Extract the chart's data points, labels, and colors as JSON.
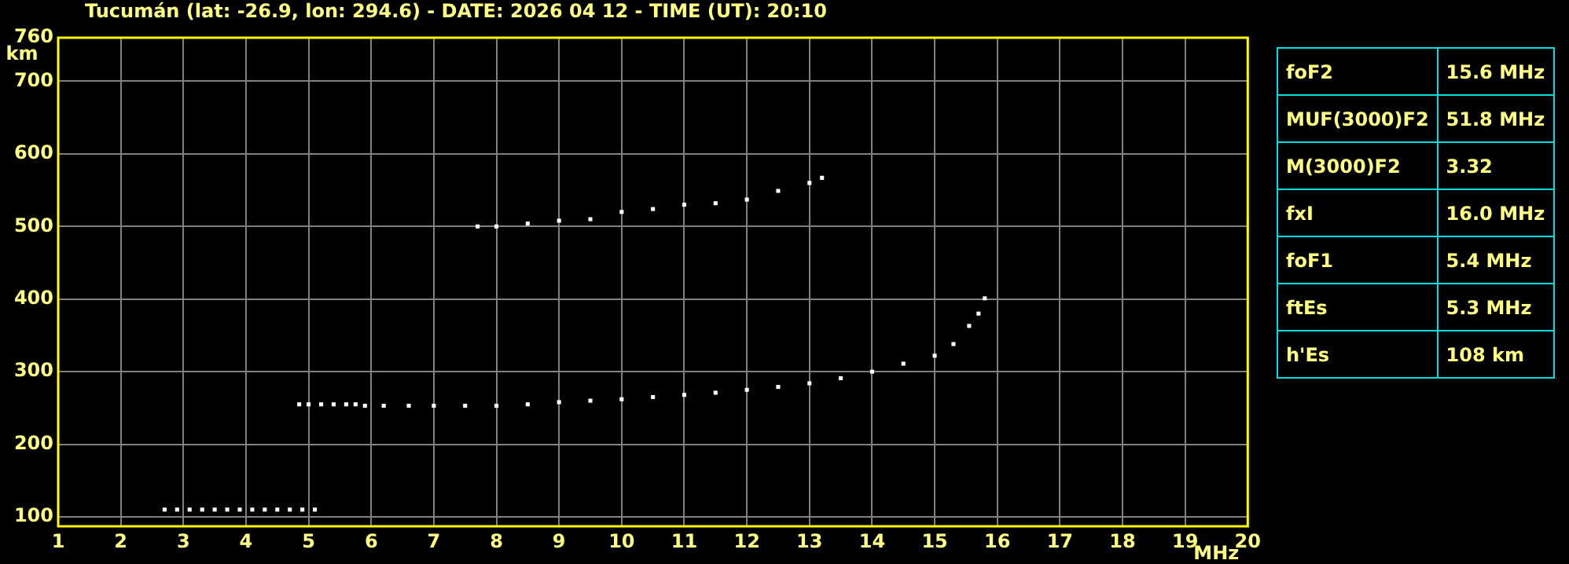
{
  "chart_data": [
    {
      "type": "scatter",
      "title": "Tucumán (lat: -26.9, lon: 294.6) - DATE: 2026 04 12 - TIME (UT): 20:10",
      "xlabel": "MHz",
      "ylabel": "km",
      "series": [
        {
          "color": "#ffffff",
          "x": [
            2.7,
            2.9,
            3.1,
            3.3,
            3.5,
            3.7,
            3.9,
            4.1,
            4.3,
            4.5,
            4.7,
            4.9,
            5.1
          ],
          "values": [
            110,
            110,
            110,
            110,
            110,
            110,
            110,
            110,
            110,
            110,
            110,
            110,
            110
          ]
        },
        {
          "color": "#ffffff",
          "x": [
            4.85,
            5.0,
            5.2,
            5.4,
            5.6,
            5.75,
            5.9,
            6.2,
            6.6,
            7.0,
            7.5,
            8.0,
            8.5,
            9.0,
            9.5,
            10.0,
            10.5,
            11.0,
            11.5,
            12.0,
            12.5,
            13.0,
            13.5,
            14.0,
            14.5,
            15.0,
            15.3,
            15.55,
            15.7,
            15.8
          ],
          "values": [
            255,
            255,
            255,
            255,
            255,
            255,
            253,
            253,
            253,
            253,
            253,
            253,
            255,
            258,
            260,
            262,
            265,
            268,
            271,
            275,
            279,
            284,
            291,
            300,
            311,
            322,
            338,
            363,
            380,
            401
          ]
        },
        {
          "color": "#ffffff",
          "x": [
            7.7,
            8.0,
            8.5,
            9.0,
            9.5,
            10.0,
            10.5,
            11.0,
            11.5,
            12.0,
            12.5,
            13.0,
            13.2
          ],
          "values": [
            500,
            500,
            504,
            508,
            510,
            520,
            524,
            530,
            532,
            537,
            549,
            560,
            567
          ]
        }
      ],
      "xlim": [
        1,
        20
      ],
      "xticks": [
        1,
        2,
        3,
        4,
        5,
        6,
        7,
        8,
        9,
        10,
        11,
        12,
        13,
        14,
        15,
        16,
        17,
        18,
        19,
        20
      ],
      "ylim": [
        87,
        760
      ],
      "yticks": [
        100,
        200,
        300,
        400,
        500,
        600,
        700,
        760
      ],
      "grid": true,
      "legend": false,
      "marker": "square"
    },
    {
      "type": "other",
      "annotations": [
        "foF2",
        "15.6 MHz",
        "MUF(3000)F2",
        "51.8 MHz",
        "M(3000)F2",
        "3.32",
        "fxI",
        "16.0 MHz",
        "foF1",
        "5.4 MHz",
        "ftEs",
        "5.3 MHz",
        "h'Es",
        "108 km"
      ]
    }
  ]
}
